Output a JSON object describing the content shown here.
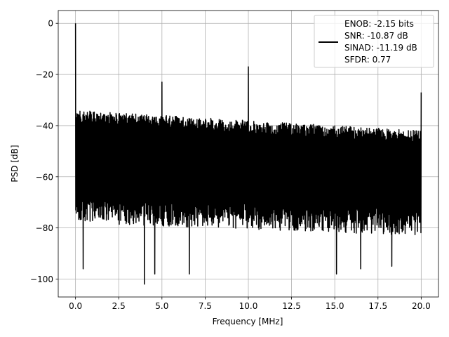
{
  "chart_data": {
    "type": "line",
    "title": "",
    "xlabel": "Frequency [MHz]",
    "ylabel": "PSD [dB]",
    "xlim": [
      -1.0,
      21.0
    ],
    "ylim": [
      -107,
      5
    ],
    "xticks": [
      0.0,
      2.5,
      5.0,
      7.5,
      10.0,
      12.5,
      15.0,
      17.5,
      20.0
    ],
    "xtick_labels": [
      "0.0",
      "2.5",
      "5.0",
      "7.5",
      "10.0",
      "12.5",
      "15.0",
      "17.5",
      "20.0"
    ],
    "yticks": [
      0,
      -20,
      -40,
      -60,
      -80,
      -100
    ],
    "ytick_labels": [
      "0",
      "−20",
      "−40",
      "−60",
      "−80",
      "−100"
    ],
    "grid": true,
    "legend_position": "top-right",
    "line_color": "#000000",
    "series": [
      {
        "legend_lines": [
          "ENOB: -2.15 bits",
          "SNR: -10.87 dB",
          "SINAD: -11.19 dB",
          "SFDR: 0.77"
        ],
        "x_range": [
          0.0,
          20.0
        ],
        "noise_floor_top": [
          -34,
          -42
        ],
        "noise_floor_bottom_typical": [
          -75,
          -80
        ],
        "deep_troughs": [
          {
            "x": 0.45,
            "y": -96
          },
          {
            "x": 4.0,
            "y": -102
          },
          {
            "x": 4.6,
            "y": -98
          },
          {
            "x": 6.6,
            "y": -98
          },
          {
            "x": 15.1,
            "y": -98
          },
          {
            "x": 16.5,
            "y": -96
          },
          {
            "x": 18.3,
            "y": -95
          }
        ],
        "peaks": [
          {
            "x": 0.0,
            "y": 0
          },
          {
            "x": 5.0,
            "y": -23
          },
          {
            "x": 10.0,
            "y": -17
          },
          {
            "x": 20.0,
            "y": -27
          }
        ]
      }
    ]
  }
}
